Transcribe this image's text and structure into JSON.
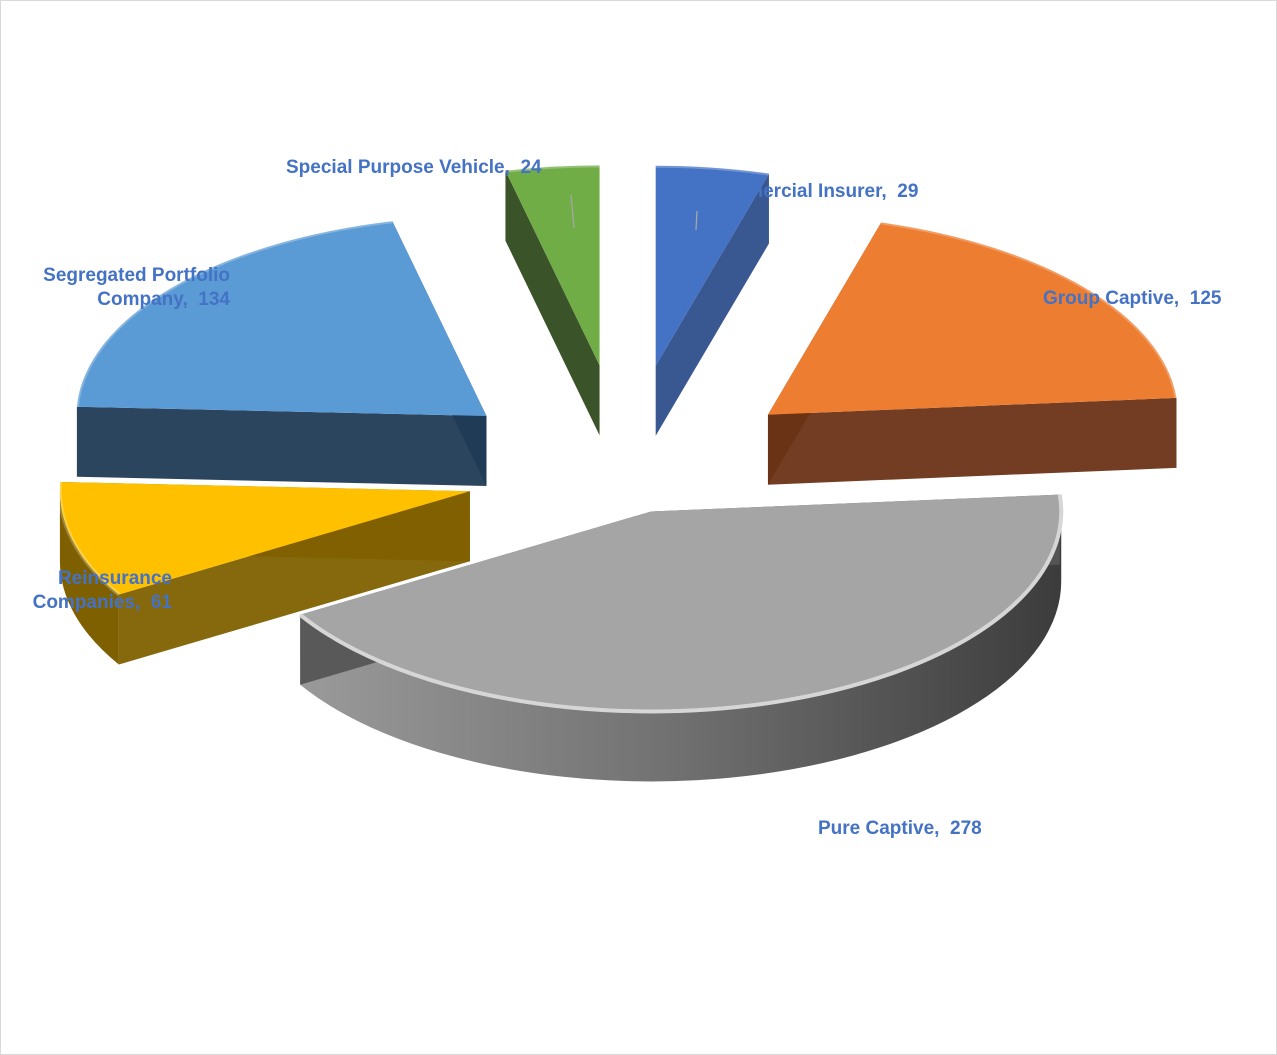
{
  "chart_data": {
    "type": "pie",
    "style": "3d-exploded",
    "slices": [
      {
        "name": "Commercial Insurer",
        "display": "Commercial Insurer",
        "value": 29,
        "color": "#4472c4",
        "side": "#2e4f8c"
      },
      {
        "name": "Group Captive",
        "display": "Group Captive",
        "value": 125,
        "color": "#ed7d31",
        "side": "#6a3316"
      },
      {
        "name": "Pure Captive",
        "display": "Pure Captive",
        "value": 278,
        "color": "#a5a5a5",
        "side": "#555555"
      },
      {
        "name": "Reinsurance Companies",
        "display": "Reinsurance\nCompanies",
        "value": 61,
        "color": "#ffc000",
        "side": "#7f6000"
      },
      {
        "name": "Segregated Portfolio Company",
        "display": "Segregated Portfolio\nCompany",
        "value": 134,
        "color": "#5b9bd5",
        "side": "#203b55"
      },
      {
        "name": "Special Purpose Vehicle",
        "display": "Special Purpose Vehicle",
        "value": 24,
        "color": "#70ad47",
        "side": "#2f4a1d"
      }
    ],
    "label_color": "#4472c4",
    "legend": "none"
  }
}
